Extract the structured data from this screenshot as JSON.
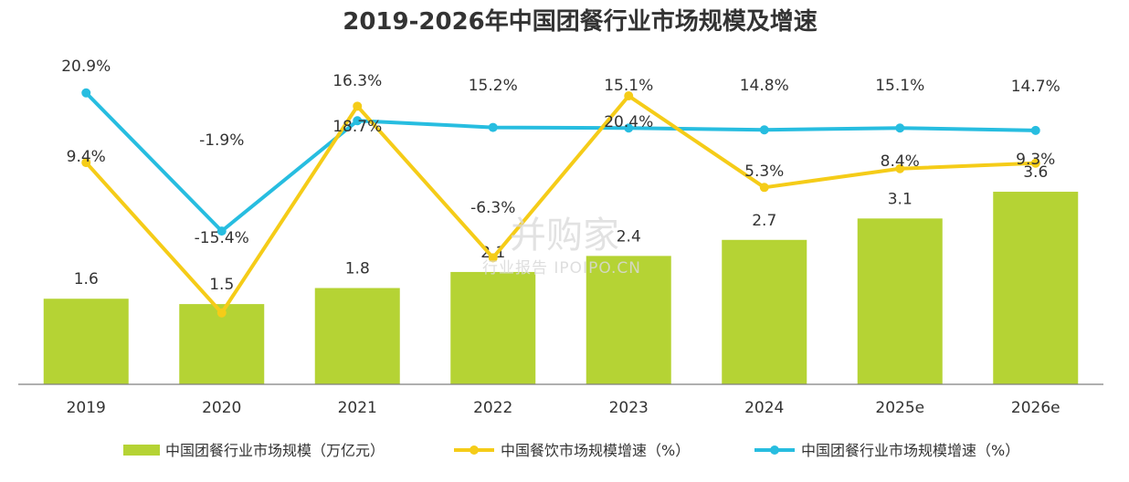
{
  "chart_data": {
    "type": "bar",
    "title": "2019-2026年中国团餐行业市场规模及增速",
    "categories": [
      "2019",
      "2020",
      "2021",
      "2022",
      "2023",
      "2024",
      "2025e",
      "2026e"
    ],
    "series": [
      {
        "name": "中国团餐行业市场规模（万亿元）",
        "type": "bar",
        "values": [
          1.6,
          1.5,
          1.8,
          2.1,
          2.4,
          2.7,
          3.1,
          3.6
        ],
        "labels": [
          "1.6",
          "1.5",
          "1.8",
          "2.1",
          "2.4",
          "2.7",
          "3.1",
          "3.6"
        ]
      },
      {
        "name": "中国餐饮市场规模增速（%）",
        "type": "line",
        "values": [
          9.4,
          -15.4,
          18.7,
          -6.3,
          20.4,
          5.3,
          8.4,
          9.3
        ],
        "labels": [
          "9.4%",
          "-15.4%",
          "18.7%",
          "-6.3%",
          "20.4%",
          "5.3%",
          "8.4%",
          "9.3%"
        ]
      },
      {
        "name": "中国团餐行业市场规模增速（%）",
        "type": "line",
        "values": [
          20.9,
          -1.9,
          16.3,
          15.2,
          15.1,
          14.8,
          15.1,
          14.7
        ],
        "labels": [
          "20.9%",
          "-1.9%",
          "16.3%",
          "15.2%",
          "15.1%",
          "14.8%",
          "15.1%",
          "14.7%"
        ]
      }
    ],
    "legend_position": "bottom",
    "grid": false,
    "colors": {
      "bar": "#b5d334",
      "catering_line": "#f5cc18",
      "groupmeal_line": "#27bde0"
    }
  },
  "watermark": {
    "main": "并购家",
    "sub": "行业报告 IPOIPO.CN"
  }
}
